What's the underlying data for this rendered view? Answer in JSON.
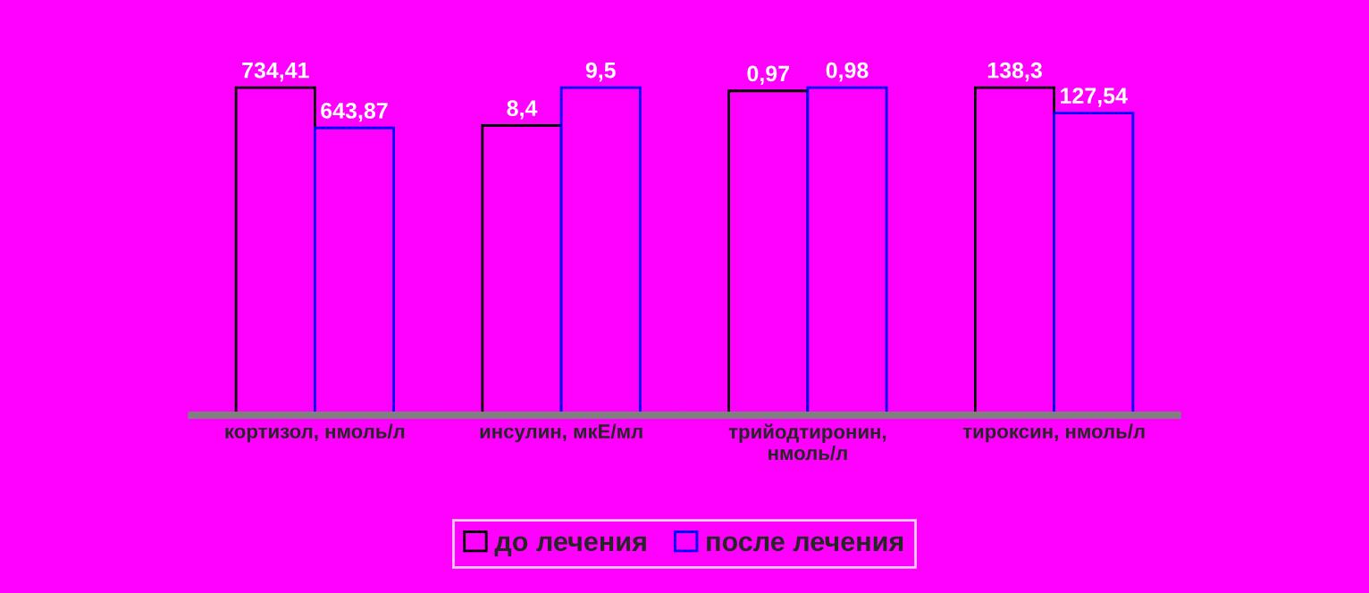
{
  "chart_data": [
    {
      "type": "bar",
      "categories": [
        "кортизол, нмоль/л"
      ],
      "legend": "bottom",
      "tick_labels": "x",
      "series": [
        {
          "name": "до лечения",
          "color": "#ff00ff",
          "values": [
            734.41
          ],
          "value_labels": [
            "734,41"
          ]
        },
        {
          "name": "после лечения",
          "color": "#ff00ff",
          "values": [
            643.87
          ],
          "value_labels": [
            "643,87"
          ]
        }
      ]
    },
    {
      "type": "bar",
      "categories": [
        "инсулин, мкЕ/мл"
      ],
      "tick_labels": "x",
      "series": [
        {
          "color": "#ff00ff",
          "values": [
            8.4
          ],
          "value_labels": [
            "8,4"
          ]
        },
        {
          "color": "#ff00ff",
          "values": [
            9.5
          ],
          "value_labels": [
            "9,5"
          ]
        }
      ]
    },
    {
      "type": "bar",
      "categories": [
        "трийодтиронин,\nнмоль/л"
      ],
      "tick_labels": "x",
      "series": [
        {
          "color": "#ff00ff",
          "values": [
            0.97
          ],
          "value_labels": [
            "0,97"
          ]
        },
        {
          "color": "#ff00ff",
          "values": [
            0.98
          ],
          "value_labels": [
            "0,98"
          ]
        }
      ]
    },
    {
      "type": "bar",
      "categories": [
        "тироксин, нмоль/л"
      ],
      "tick_labels": "x",
      "series": [
        {
          "color": "#ff00ff",
          "values": [
            138.3
          ],
          "value_labels": [
            "138,3"
          ]
        },
        {
          "color": "#ff00ff",
          "values": [
            127.54
          ],
          "value_labels": [
            "127,54"
          ]
        }
      ]
    }
  ]
}
